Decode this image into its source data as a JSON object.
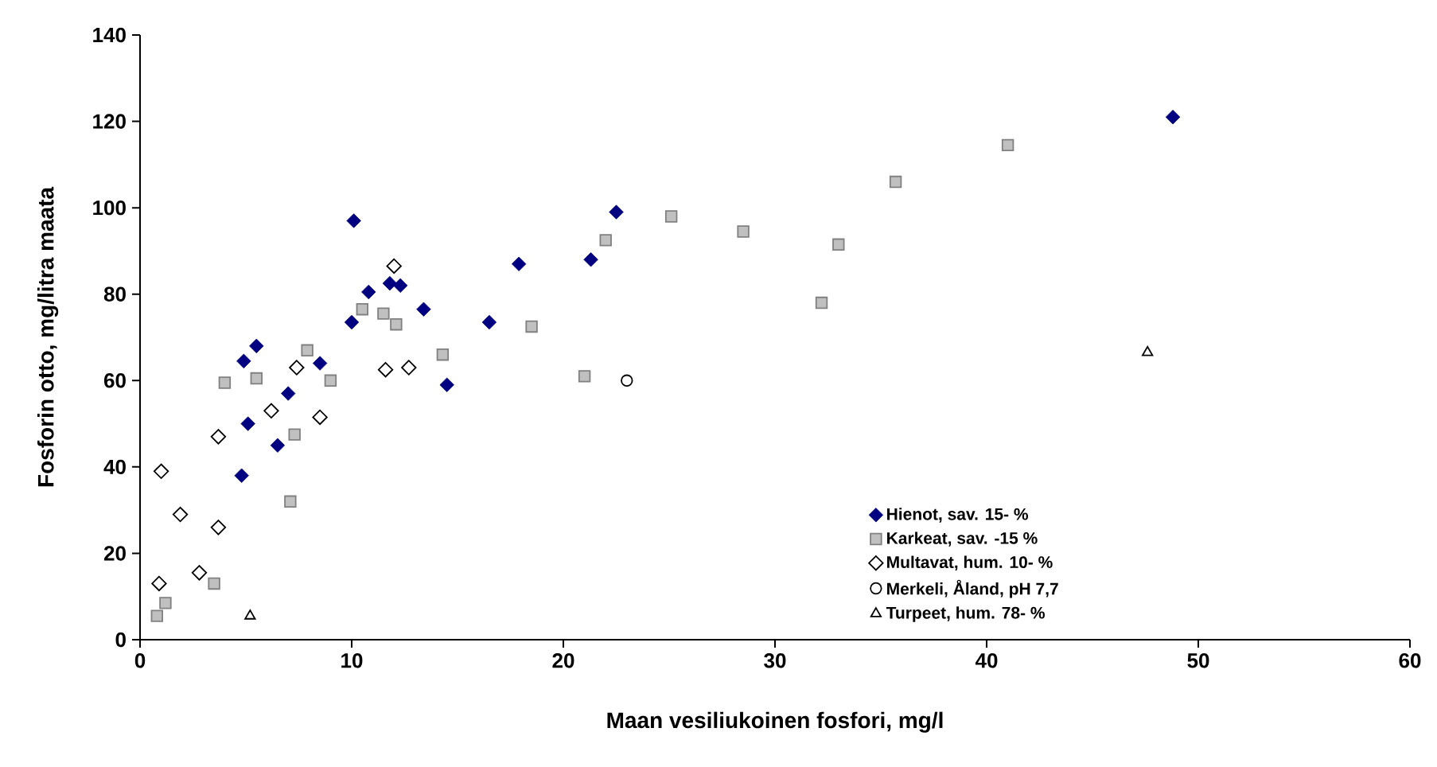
{
  "chart_data": {
    "type": "scatter",
    "xlabel": "Maan vesiliukoinen fosfori, mg/l",
    "ylabel": "Fosforin otto, mg/litra maata",
    "xlim": [
      0,
      60
    ],
    "xticks": [
      0,
      10,
      20,
      30,
      40,
      50,
      60
    ],
    "ylim": [
      0,
      140
    ],
    "yticks": [
      0,
      20,
      40,
      60,
      80,
      100,
      120,
      140
    ],
    "grid": false,
    "legend": "bottom right",
    "series": [
      {
        "name": "Hienot, sav. 15- %",
        "color": "#000080",
        "marker": "diamond",
        "x": [
          4.8,
          5.1,
          4.9,
          5.5,
          6.5,
          7.0,
          8.5,
          10.1,
          10.0,
          10.8,
          11.8,
          12.3,
          13.4,
          14.5,
          16.5,
          17.9,
          21.3,
          22.5,
          48.8
        ],
        "values": [
          38,
          50,
          64.5,
          68,
          45,
          57,
          64,
          97,
          73.5,
          80.5,
          82.5,
          82,
          76.5,
          59,
          73.5,
          87,
          88,
          99,
          121
        ]
      },
      {
        "name": "Karkeat, sav. -15 %",
        "color": "#c0c0c0",
        "marker": "square",
        "x": [
          0.8,
          1.2,
          3.5,
          4.0,
          5.5,
          7.1,
          7.3,
          7.9,
          9.0,
          10.5,
          11.5,
          12.1,
          14.3,
          18.5,
          21.0,
          22.0,
          25.1,
          28.5,
          33.0,
          32.2,
          35.7,
          41.0
        ],
        "values": [
          5.5,
          8.5,
          13,
          59.5,
          60.5,
          32,
          47.5,
          67,
          60,
          76.5,
          75.5,
          73,
          66,
          72.5,
          61,
          92.5,
          98,
          94.5,
          91.5,
          78,
          106,
          114.5
        ]
      },
      {
        "name": "Multavat, hum. 10- %",
        "color": "#000000",
        "marker": "diamond",
        "x": [
          0.9,
          1.0,
          1.9,
          2.8,
          3.7,
          3.7,
          6.2,
          7.4,
          8.5,
          11.6,
          12.0,
          12.7
        ],
        "values": [
          13,
          39,
          29,
          15.5,
          47,
          26,
          53,
          63,
          51.5,
          62.5,
          86.5,
          63
        ]
      },
      {
        "name": "Merkeli, Åland, pH 7,7",
        "color": "#000000",
        "marker": "circle",
        "x": [
          23.0
        ],
        "values": [
          60
        ]
      },
      {
        "name": "Turpeet, hum. 78- %",
        "color": "#000000",
        "marker": "triangle",
        "x": [
          5.2,
          47.6
        ],
        "values": [
          5.5,
          66.5
        ]
      }
    ]
  }
}
